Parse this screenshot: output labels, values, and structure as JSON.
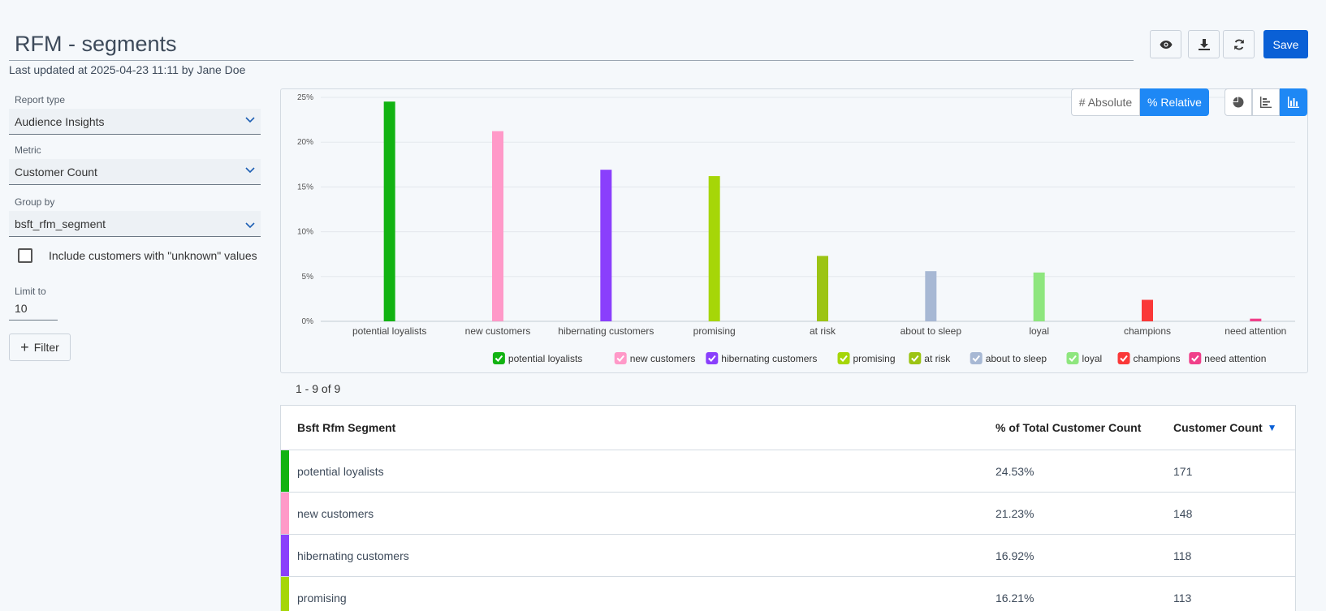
{
  "header": {
    "title": "RFM - segments",
    "updated": "Last updated at 2025-04-23 11:11 by Jane Doe",
    "save_label": "Save"
  },
  "sidebar": {
    "report_type": {
      "label": "Report type",
      "value": "Audience Insights"
    },
    "metric": {
      "label": "Metric",
      "value": "Customer Count"
    },
    "group_by": {
      "label": "Group by",
      "value": "bsft_rfm_segment"
    },
    "include_unknown": {
      "label": "Include customers with \"unknown\" values",
      "checked": false
    },
    "limit": {
      "label": "Limit to",
      "value": "10"
    },
    "filter_label": "Filter"
  },
  "chart_controls": {
    "absolute_label": "# Absolute",
    "relative_label": "% Relative",
    "mode": "relative",
    "chart_types": [
      "pie-chart-icon",
      "horizontal-bar-icon",
      "vertical-bar-icon"
    ],
    "active_type": "vertical-bar-icon"
  },
  "chart_data": {
    "type": "bar",
    "categories": [
      "potential loyalists",
      "new customers",
      "hibernating customers",
      "promising",
      "at risk",
      "about to sleep",
      "loyal",
      "champions",
      "need attention"
    ],
    "values": [
      24.53,
      21.23,
      16.92,
      16.21,
      7.3,
      5.6,
      5.45,
      2.4,
      0.3
    ],
    "colors": [
      "#12b312",
      "#ff99c8",
      "#8a3ffc",
      "#a6d608",
      "#9cc414",
      "#a7b8d4",
      "#8ee67e",
      "#fa3838",
      "#f0408a"
    ],
    "ylim": [
      0,
      25
    ],
    "yticks": [
      "0%",
      "5%",
      "10%",
      "15%",
      "20%",
      "25%"
    ],
    "grid": true,
    "legend": "bottom"
  },
  "table": {
    "pager": "1 - 9 of 9",
    "headers": [
      "Bsft Rfm Segment",
      "% of Total Customer Count",
      "Customer Count"
    ],
    "rows": [
      {
        "segment": "potential loyalists",
        "pct": "24.53%",
        "count": "171",
        "color": "#12b312"
      },
      {
        "segment": "new customers",
        "pct": "21.23%",
        "count": "148",
        "color": "#ff99c8"
      },
      {
        "segment": "hibernating customers",
        "pct": "16.92%",
        "count": "118",
        "color": "#8a3ffc"
      },
      {
        "segment": "promising",
        "pct": "16.21%",
        "count": "113",
        "color": "#a6d608"
      }
    ]
  },
  "colors": {
    "accent": "#1e88f5",
    "primary_button": "#0a60d6"
  }
}
